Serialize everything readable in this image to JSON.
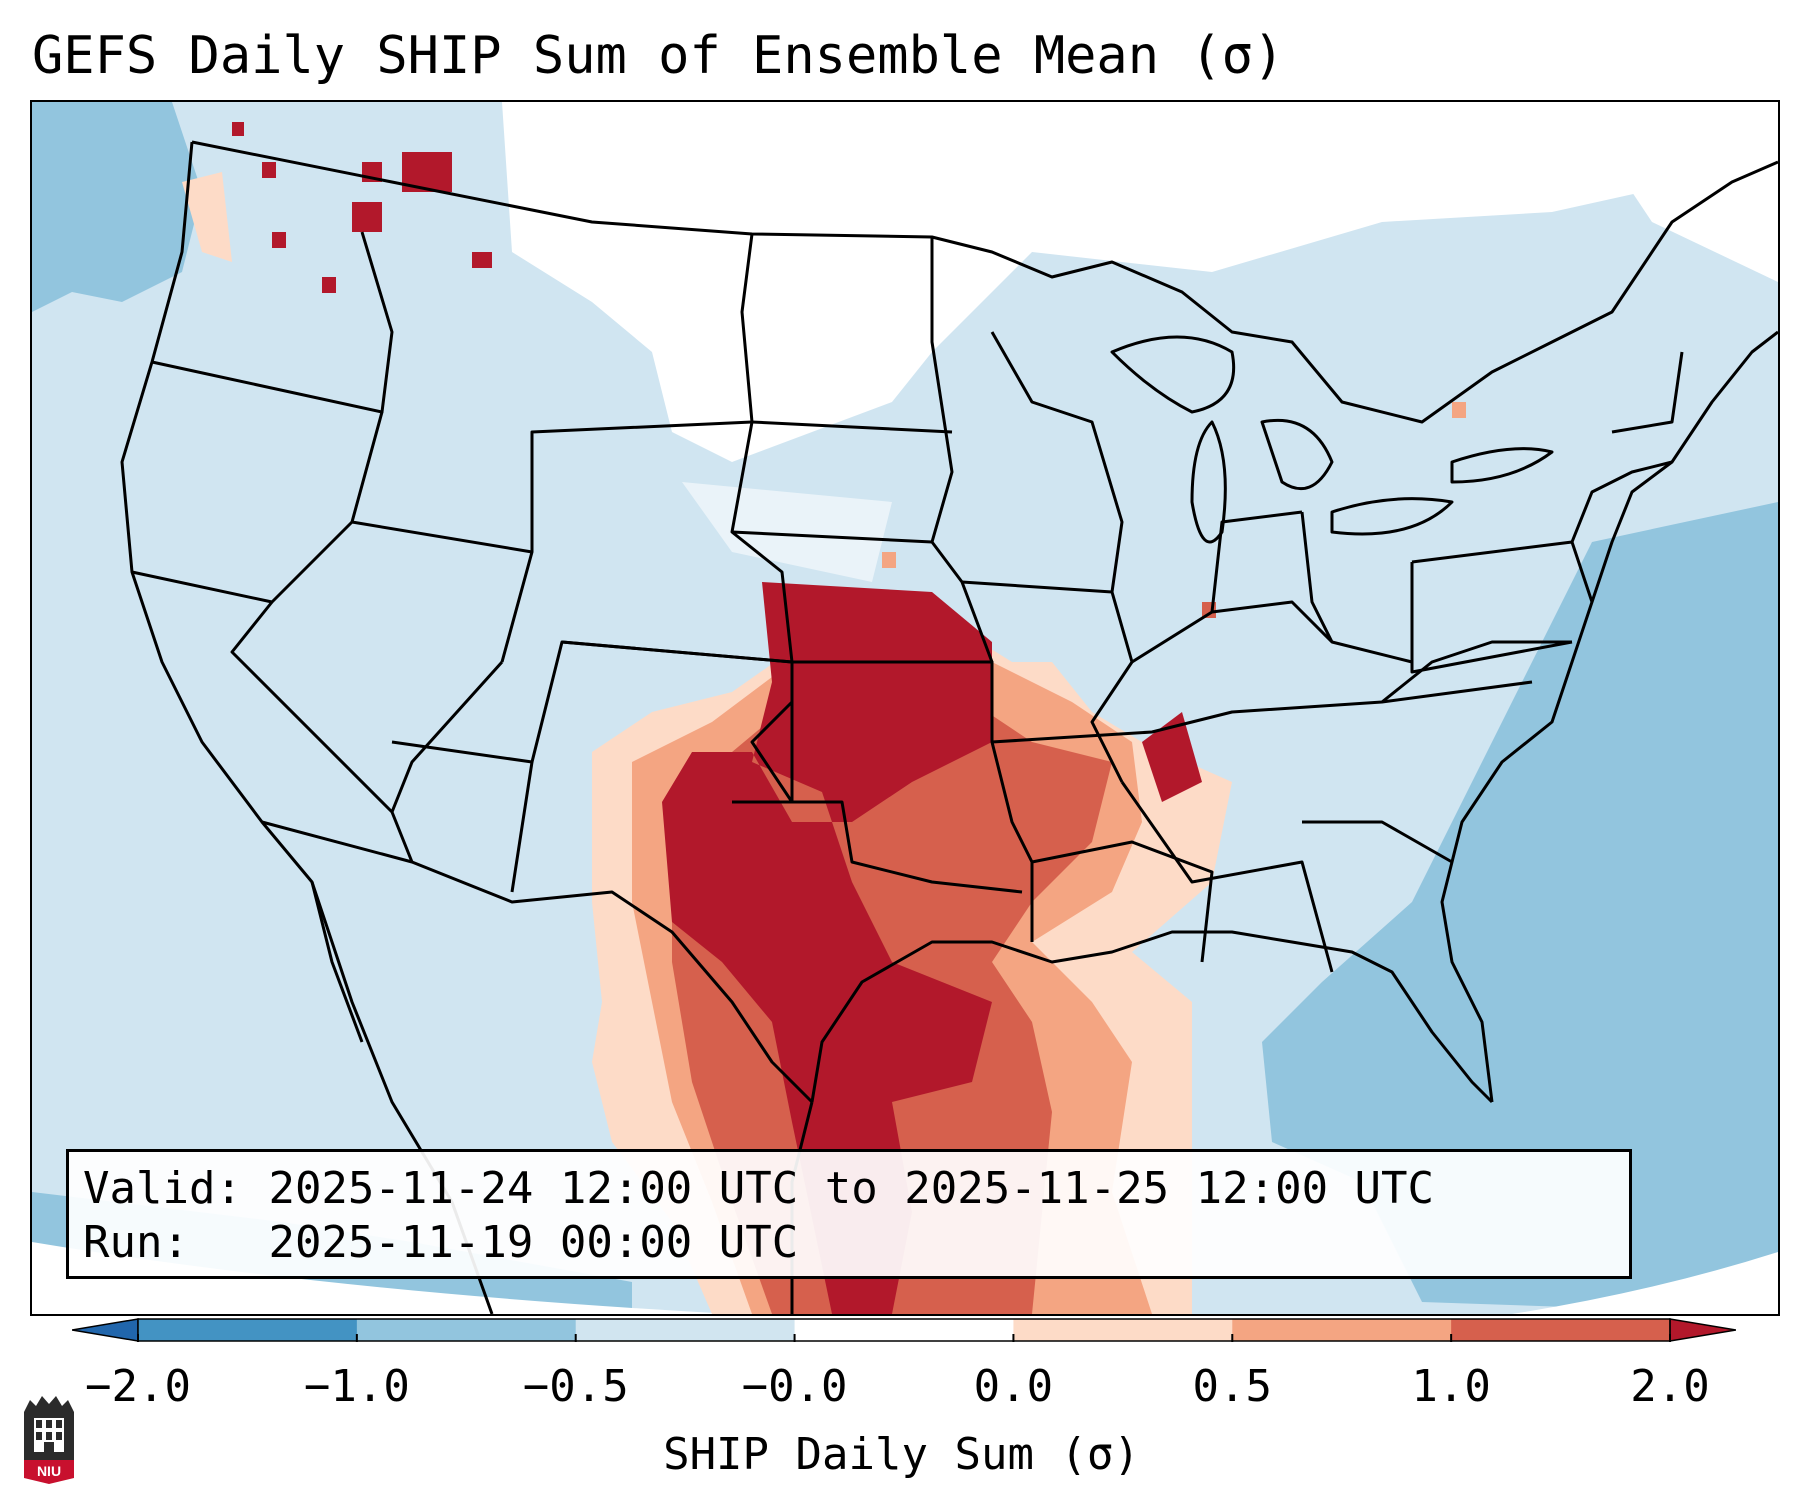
{
  "title": "GEFS Daily SHIP Sum of Ensemble Mean (σ)",
  "info": {
    "valid_label": "Valid:",
    "valid_value": "2025-11-24 12:00 UTC to 2025-11-25 12:00 UTC",
    "run_label": "Run:",
    "run_value": "2025-11-19 00:00 UTC"
  },
  "colorbar": {
    "label": "SHIP Daily Sum (σ)",
    "ticks": [
      "−2.0",
      "−1.0",
      "−0.5",
      "−0.0",
      "0.0",
      "0.5",
      "1.0",
      "2.0"
    ],
    "bins": [
      {
        "from": -2.0,
        "to": -1.0,
        "color": "#4393c3"
      },
      {
        "from": -1.0,
        "to": -0.5,
        "color": "#92c5de"
      },
      {
        "from": -0.5,
        "to": 0.0,
        "color": "#d1e5f0"
      },
      {
        "from": 0.0,
        "to": 0.0,
        "color": "#ffffff"
      },
      {
        "from": 0.0,
        "to": 0.5,
        "color": "#fddbc7"
      },
      {
        "from": 0.5,
        "to": 1.0,
        "color": "#f4a582"
      },
      {
        "from": 1.0,
        "to": 2.0,
        "color": "#d6604d"
      }
    ],
    "under_color": "#2166ac",
    "over_color": "#b2182b"
  },
  "map": {
    "projection": "Lambert conformal, CONUS",
    "field": "SHIP daily sum (sigma)",
    "background_color": "#d0e5f1",
    "high_region": "Southern Plains to Lower Mississippi Valley",
    "peak_color": "#b2182b"
  },
  "logo": {
    "text": "NIU",
    "color": "#c8102e"
  }
}
